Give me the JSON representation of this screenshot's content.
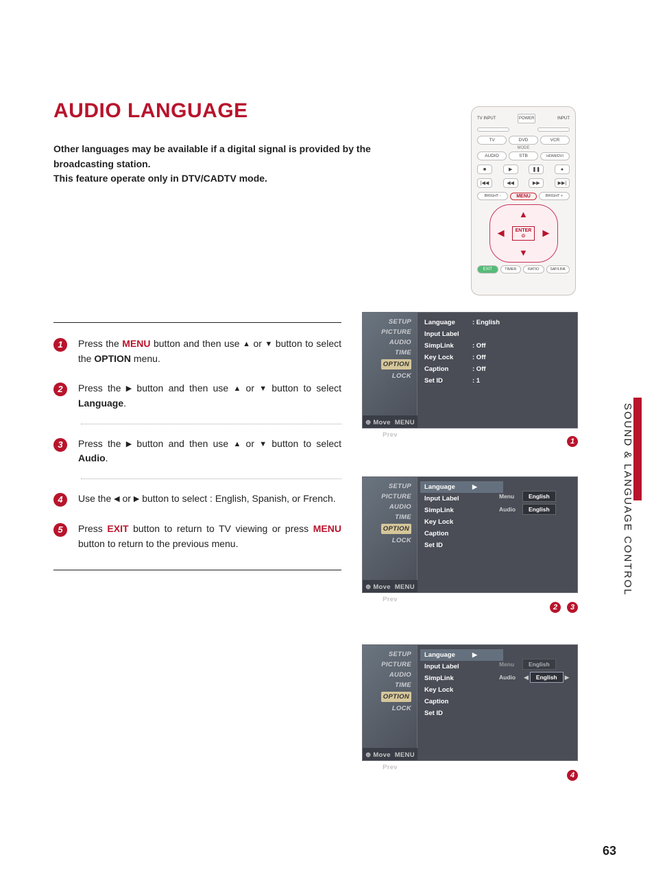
{
  "page": {
    "title": "AUDIO LANGUAGE",
    "number": "63",
    "side_label": "SOUND & LANGUAGE CONTROL"
  },
  "intro": {
    "line1": "Other languages may be available if a digital signal is provided by the broadcasting station.",
    "line2": "This feature operate only in DTV/CADTV mode."
  },
  "remote": {
    "labels": {
      "tv_input": "TV INPUT",
      "power": "POWER",
      "input": "INPUT",
      "tv": "TV",
      "dvd": "DVD",
      "vcr": "VCR",
      "mode": "MODE",
      "audio": "AUDIO",
      "stb": "STB",
      "hdmi": "HDMI/DVI",
      "bright_minus": "BRIGHT -",
      "menu": "MENU",
      "bright_plus": "BRIGHT +",
      "enter": "ENTER",
      "exit": "EXIT",
      "timer": "TIMER",
      "ratio": "RATIO",
      "saplink": "SAP/LINK"
    },
    "dpad": {
      "up": "▲",
      "down": "▼",
      "left": "◀",
      "right": "▶"
    },
    "transport": {
      "stop": "■",
      "play": "▶",
      "pause": "❚❚",
      "rec": "●",
      "prev": "|◀◀",
      "rew": "◀◀",
      "ff": "▶▶",
      "next": "▶▶|"
    }
  },
  "steps": {
    "s1": {
      "pre": "Press the ",
      "menu": "MENU",
      "mid": " button and then use ",
      "mid2": " or ",
      "end": " button to select the ",
      "option": "OPTION",
      "tail": " menu."
    },
    "s2": {
      "pre": "Press the ",
      "mid": " button and then use ",
      "mid2": " or ",
      "end": " button to select ",
      "target": "Language",
      "tail": "."
    },
    "s3": {
      "pre": "Press the ",
      "mid": " button and then use ",
      "mid2": " or ",
      "end": " button to select ",
      "target": "Audio",
      "tail": "."
    },
    "s4": {
      "pre": "Use the ",
      "mid": " or ",
      "end": " button to select : English, Spanish, or French."
    },
    "s5": {
      "pre": "Press ",
      "exit": "EXIT",
      "mid": " button to return to TV viewing or press ",
      "menu": "MENU",
      "end": " button to return to the previous menu."
    },
    "nums": {
      "n1": "1",
      "n2": "2",
      "n3": "3",
      "n4": "4",
      "n5": "5"
    },
    "arrows": {
      "up": "▲",
      "down": "▼",
      "left": "◀",
      "right": "▶"
    }
  },
  "osd": {
    "menus": [
      "SETUP",
      "PICTURE",
      "AUDIO",
      "TIME",
      "OPTION",
      "LOCK"
    ],
    "footer": {
      "move": "⊕ Move",
      "prev": "MENU Prev"
    },
    "p1": {
      "rows": [
        {
          "lab": "Language",
          "val": ": English"
        },
        {
          "lab": "Input Label",
          "val": ""
        },
        {
          "lab": "SimpLink",
          "val": ": Off"
        },
        {
          "lab": "Key Lock",
          "val": ": Off"
        },
        {
          "lab": "Caption",
          "val": ": Off"
        },
        {
          "lab": "Set ID",
          "val": ": 1"
        }
      ]
    },
    "p2": {
      "rows": [
        {
          "lab": "Language"
        },
        {
          "lab": "Input Label"
        },
        {
          "lab": "SimpLink"
        },
        {
          "lab": "Key Lock"
        },
        {
          "lab": "Caption"
        },
        {
          "lab": "Set ID"
        }
      ],
      "sub": [
        {
          "lab": "Menu",
          "val": "English"
        },
        {
          "lab": "Audio",
          "val": "English"
        }
      ]
    },
    "p3": {
      "rows": [
        {
          "lab": "Language"
        },
        {
          "lab": "Input Label"
        },
        {
          "lab": "SimpLink"
        },
        {
          "lab": "Key Lock"
        },
        {
          "lab": "Caption"
        },
        {
          "lab": "Set ID"
        }
      ],
      "sub": [
        {
          "lab": "Menu",
          "val": "English",
          "dim": true
        },
        {
          "lab": "Audio",
          "val": "English",
          "sel": true
        }
      ]
    }
  },
  "colors": {
    "accent": "#b8142c",
    "osd_bg": "#4a4d56"
  }
}
